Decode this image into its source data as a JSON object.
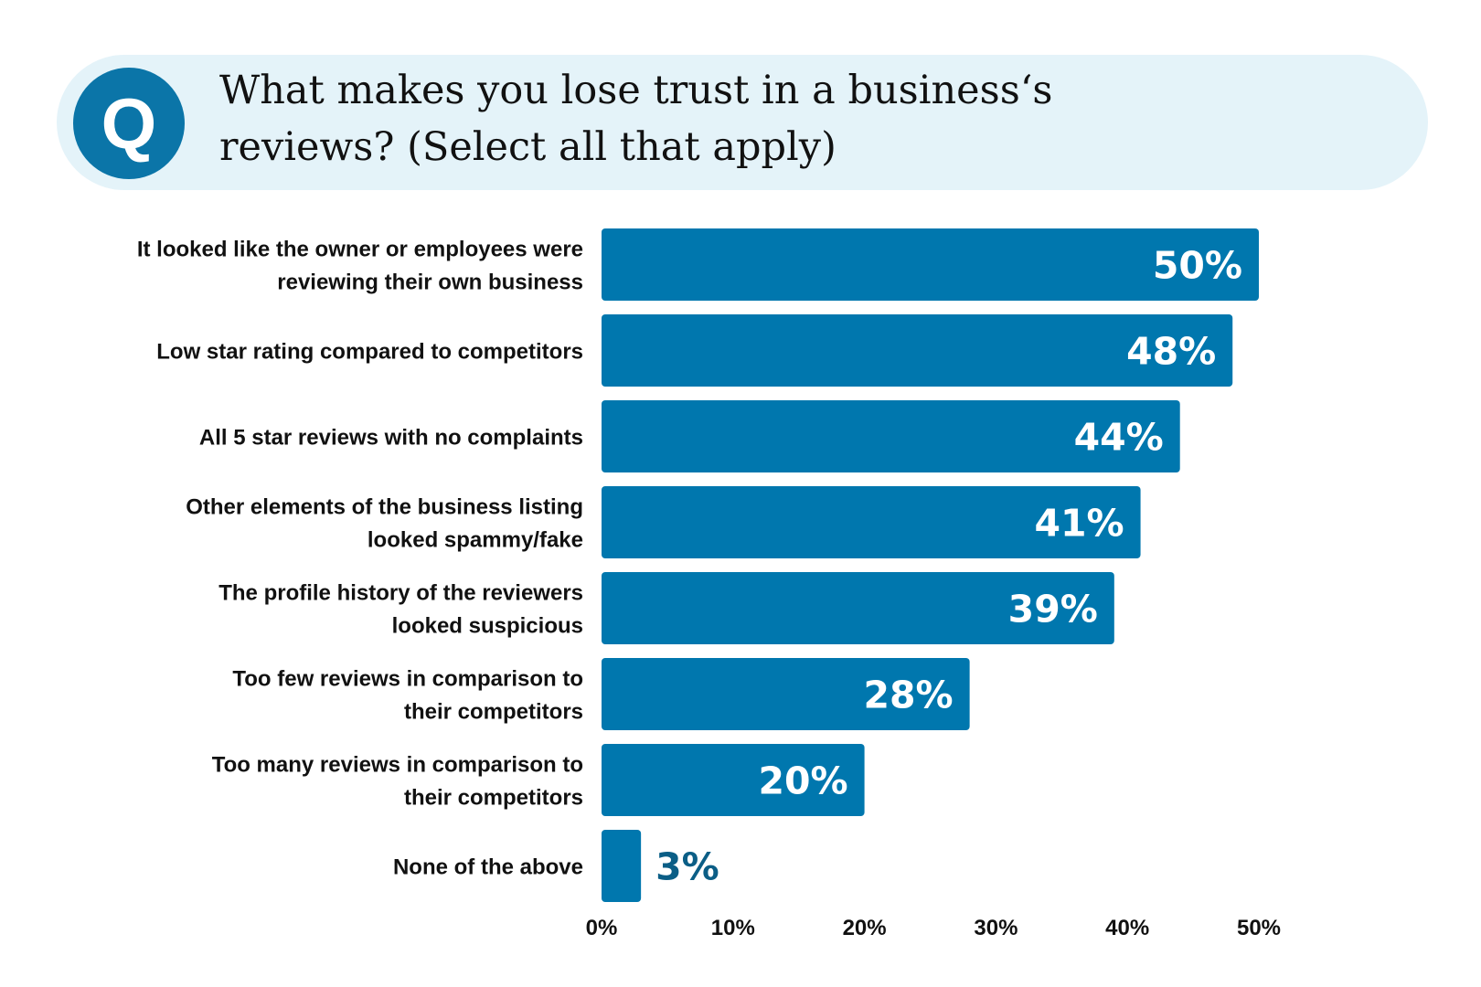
{
  "header": {
    "badge_letter": "Q",
    "question": "What makes you lose trust in a business‘s\nreviews? (Select all that apply)"
  },
  "colors": {
    "bar": "#0077ae",
    "header_bg": "#e4f3f9",
    "badge": "#0b75a8",
    "value_outside": "#0b5e86"
  },
  "chart_data": {
    "type": "bar",
    "orientation": "horizontal",
    "categories": [
      [
        "It looked like the owner or employees were",
        "reviewing their own business"
      ],
      [
        "Low star rating compared to competitors"
      ],
      [
        "All 5 star reviews with no complaints"
      ],
      [
        "Other elements of the business listing",
        "looked spammy/fake"
      ],
      [
        "The profile history of the reviewers",
        "looked suspicious"
      ],
      [
        "Too few reviews in comparison to",
        "their competitors"
      ],
      [
        "Too many reviews in comparison to",
        "their competitors"
      ],
      [
        "None of the above"
      ]
    ],
    "values": [
      50,
      48,
      44,
      41,
      39,
      28,
      20,
      3
    ],
    "value_labels": [
      "50%",
      "48%",
      "44%",
      "41%",
      "39%",
      "28%",
      "20%",
      "3%"
    ],
    "xlim": [
      0,
      50
    ],
    "ticks": [
      0,
      10,
      20,
      30,
      40,
      50
    ],
    "tick_labels": [
      "0%",
      "10%",
      "20%",
      "30%",
      "40%",
      "50%"
    ],
    "grid": false,
    "legend": "none"
  }
}
